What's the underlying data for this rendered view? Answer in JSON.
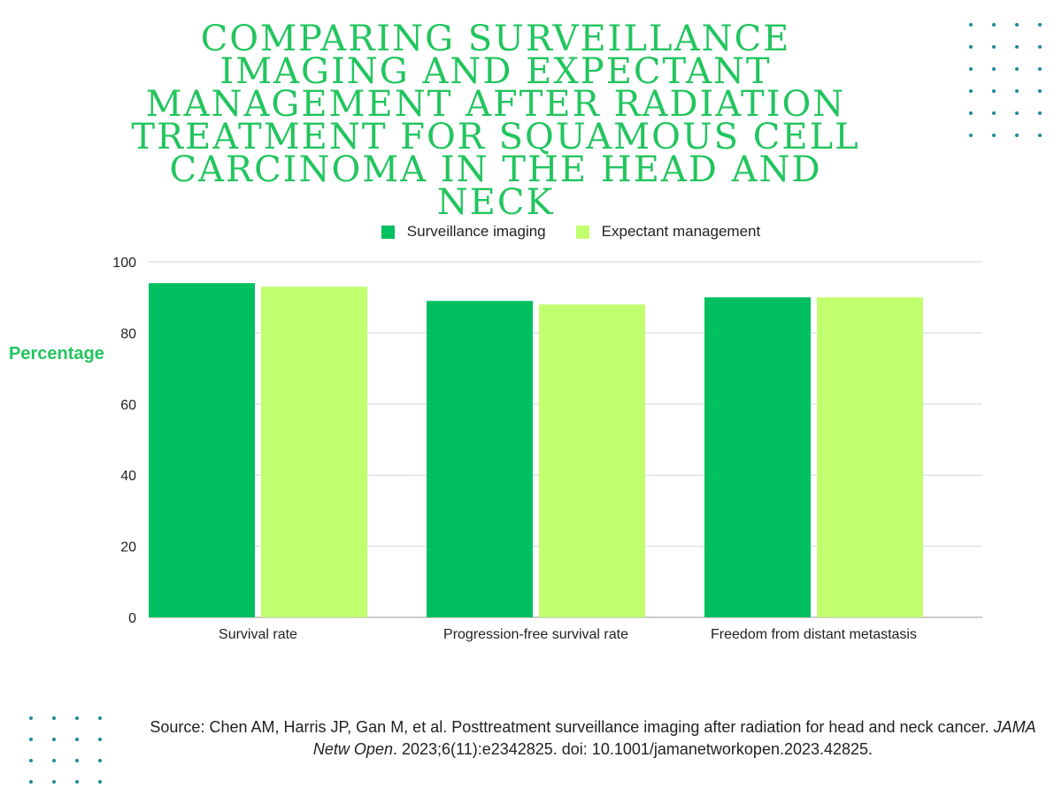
{
  "title": "Comparing surveillance imaging and expectant management after radiation treatment for squamous cell carcinoma in the head and neck",
  "source": {
    "prefix": "Source: Chen AM, Harris JP, Gan M, et al. Posttreatment surveillance imaging after radiation for head and neck cancer. ",
    "journal": "JAMA Netw Open",
    "suffix": ". 2023;6(11):e2342825. doi: 10.1001/jamanetworkopen.2023.42825."
  },
  "colors": {
    "title": "#22c55e",
    "surveillance": "#00c060",
    "expectant": "#c2ff6e",
    "dots": "#1f8a9a"
  },
  "chart_data": {
    "type": "bar",
    "title": "Comparing surveillance imaging and expectant management after radiation treatment for squamous cell carcinoma in the head and neck",
    "xlabel": "",
    "ylabel": "Percentage",
    "categories": [
      "Survival rate",
      "Progression-free survival rate",
      "Freedom from distant metastasis"
    ],
    "series": [
      {
        "name": "Surveillance imaging",
        "values": [
          94,
          89,
          90
        ],
        "color": "#00c060"
      },
      {
        "name": "Expectant management",
        "values": [
          93,
          88,
          90
        ],
        "color": "#c2ff6e"
      }
    ],
    "ylim": [
      0,
      100
    ],
    "yticks": [
      0,
      20,
      40,
      60,
      80,
      100
    ],
    "grid": true,
    "legend": "top-center"
  }
}
